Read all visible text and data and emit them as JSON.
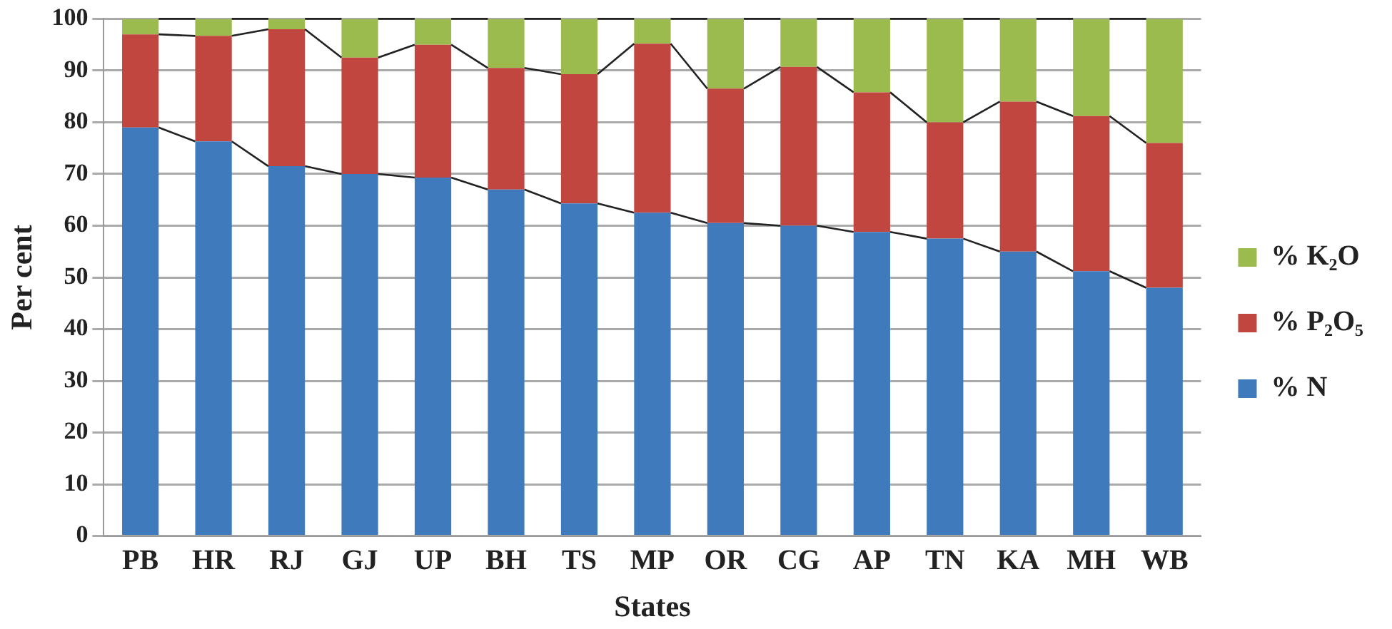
{
  "chart_data": {
    "type": "bar",
    "stacked": true,
    "xlabel": "States",
    "ylabel": "Per cent",
    "categories": [
      "PB",
      "HR",
      "RJ",
      "GJ",
      "UP",
      "BH",
      "TS",
      "MP",
      "OR",
      "CG",
      "AP",
      "TN",
      "KA",
      "MH",
      "WB"
    ],
    "series": [
      {
        "name": "% N",
        "color": "#3f7abd",
        "values": [
          79,
          76.3,
          71.5,
          70,
          69.3,
          67,
          64.3,
          62.5,
          60.5,
          60,
          58.8,
          57.5,
          55,
          51.2,
          48
        ]
      },
      {
        "name": "% P₂O₅",
        "color": "#c0463f",
        "values": [
          18,
          20.4,
          26.5,
          22.5,
          25.7,
          23.5,
          25,
          32.7,
          26,
          30.7,
          27,
          22.5,
          29,
          30,
          28
        ]
      },
      {
        "name": "% K₂O",
        "color": "#9bbb4e",
        "values": [
          3,
          3.3,
          2,
          7.5,
          5,
          9.5,
          10.7,
          4.8,
          13.5,
          9.3,
          14.2,
          20,
          16,
          18.8,
          24
        ]
      }
    ],
    "ylim": [
      0,
      100
    ],
    "yticks": [
      0,
      10,
      20,
      30,
      40,
      50,
      60,
      70,
      80,
      90,
      100
    ],
    "grid": "y",
    "legend": "right"
  }
}
